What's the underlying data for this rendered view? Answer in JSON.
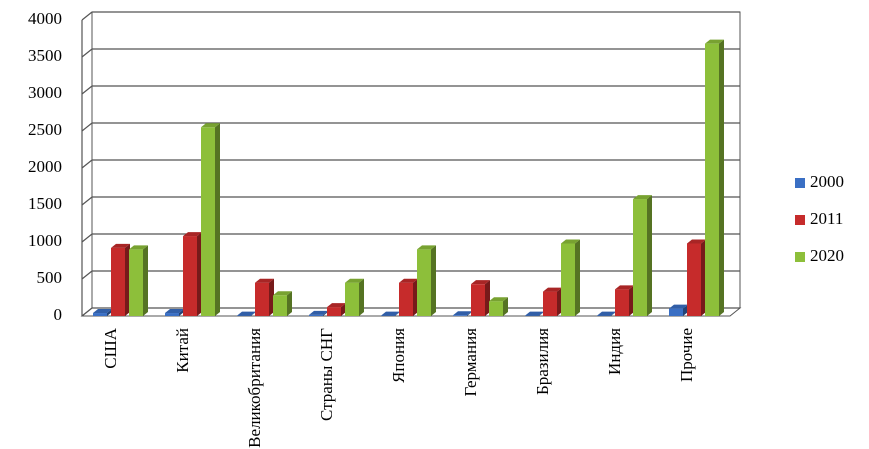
{
  "chart_data": {
    "type": "bar",
    "categories": [
      "США",
      "Китай",
      "Великобритания",
      "Страны СНГ",
      "Япония",
      "Германия",
      "Бразилия",
      "Индия",
      "Прочие"
    ],
    "series": [
      {
        "name": "2000",
        "color": "#3a6fc4",
        "values": [
          40,
          40,
          5,
          15,
          5,
          10,
          5,
          5,
          100
        ]
      },
      {
        "name": "2011",
        "color": "#c62b2b",
        "values": [
          920,
          1080,
          450,
          120,
          450,
          430,
          330,
          360,
          980
        ]
      },
      {
        "name": "2020",
        "color": "#8dbf3a",
        "values": [
          900,
          2550,
          280,
          450,
          900,
          200,
          980,
          1580,
          3680
        ]
      }
    ],
    "ylim": [
      0,
      4000
    ],
    "yticks": [
      0,
      500,
      1000,
      1500,
      2000,
      2500,
      3000,
      3500,
      4000
    ],
    "grid": true,
    "legend": "right"
  }
}
